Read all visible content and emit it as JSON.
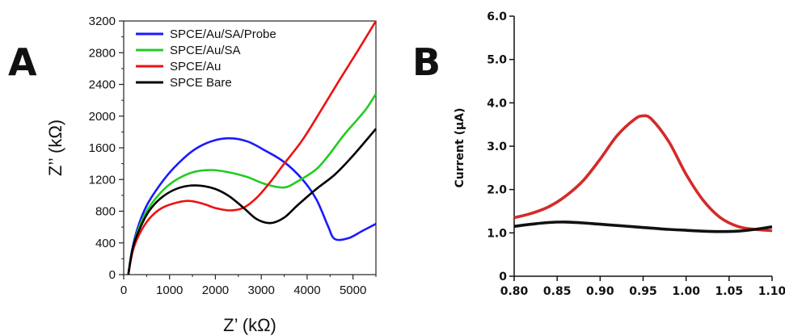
{
  "panels": {
    "a": "A",
    "b": "B"
  },
  "chart_data": [
    {
      "type": "line",
      "xlabel": "Z’ (kΩ)",
      "ylabel": "Z’’ (kΩ)",
      "xlim": [
        0,
        5500
      ],
      "ylim": [
        0,
        3200
      ],
      "xticks": [
        "0",
        "1000",
        "2000",
        "3000",
        "4000",
        "5000"
      ],
      "yticks": [
        "0",
        "400",
        "800",
        "1200",
        "1600",
        "2000",
        "2400",
        "2800",
        "3200"
      ],
      "legend_position": "top-left",
      "series": [
        {
          "name": "SPCE/Au/SA/Probe",
          "color": "#1a1aff",
          "x": [
            100,
            180,
            300,
            500,
            800,
            1100,
            1500,
            1900,
            2300,
            2700,
            3100,
            3500,
            3900,
            4200,
            4450,
            4600,
            4900,
            5200,
            5500
          ],
          "y": [
            0,
            300,
            580,
            870,
            1140,
            1350,
            1560,
            1680,
            1720,
            1680,
            1560,
            1420,
            1200,
            950,
            620,
            450,
            460,
            550,
            640
          ]
        },
        {
          "name": "SPCE/Au/SA",
          "color": "#22cc22",
          "x": [
            100,
            180,
            300,
            500,
            800,
            1100,
            1500,
            1900,
            2300,
            2700,
            3100,
            3500,
            3800,
            4200,
            4500,
            4800,
            5100,
            5300,
            5500
          ],
          "y": [
            0,
            280,
            540,
            800,
            1030,
            1180,
            1290,
            1320,
            1290,
            1230,
            1140,
            1100,
            1180,
            1330,
            1530,
            1760,
            1960,
            2100,
            2280
          ]
        },
        {
          "name": "SPCE/Au",
          "color": "#ee1111",
          "x": [
            100,
            200,
            350,
            550,
            800,
            1100,
            1400,
            1700,
            2000,
            2300,
            2600,
            2900,
            3200,
            3500,
            3900,
            4300,
            4700,
            5100,
            5500
          ],
          "y": [
            0,
            300,
            520,
            700,
            830,
            900,
            930,
            900,
            840,
            810,
            840,
            970,
            1170,
            1400,
            1700,
            2070,
            2450,
            2820,
            3200
          ]
        },
        {
          "name": "SPCE Bare",
          "color": "#000000",
          "x": [
            100,
            200,
            350,
            550,
            800,
            1100,
            1400,
            1700,
            2000,
            2300,
            2600,
            2900,
            3200,
            3500,
            3800,
            4200,
            4600,
            5000,
            5500
          ],
          "y": [
            0,
            340,
            580,
            800,
            960,
            1070,
            1120,
            1120,
            1080,
            990,
            850,
            700,
            650,
            720,
            880,
            1080,
            1260,
            1500,
            1840
          ]
        }
      ]
    },
    {
      "type": "line",
      "xlabel": "",
      "ylabel": "Current (μA)",
      "xlim": [
        0.8,
        1.1
      ],
      "ylim": [
        0,
        6.0
      ],
      "xticks": [
        "0.80",
        "0.85",
        "0.90",
        "0.95",
        "1.00",
        "1.05",
        "1.10"
      ],
      "yticks": [
        "0",
        "1.0",
        "2.0",
        "3.0",
        "4.0",
        "5.0",
        "6.0"
      ],
      "series": [
        {
          "color": "#d42a2a",
          "x": [
            0.8,
            0.82,
            0.84,
            0.86,
            0.88,
            0.9,
            0.92,
            0.94,
            0.95,
            0.96,
            0.98,
            1.0,
            1.02,
            1.04,
            1.06,
            1.08,
            1.1
          ],
          "y": [
            1.35,
            1.45,
            1.6,
            1.85,
            2.2,
            2.7,
            3.25,
            3.62,
            3.7,
            3.62,
            3.1,
            2.35,
            1.75,
            1.35,
            1.15,
            1.08,
            1.05
          ]
        },
        {
          "color": "#111111",
          "x": [
            0.8,
            0.82,
            0.84,
            0.86,
            0.88,
            0.9,
            0.92,
            0.94,
            0.96,
            0.98,
            1.0,
            1.02,
            1.04,
            1.06,
            1.08,
            1.1
          ],
          "y": [
            1.15,
            1.2,
            1.24,
            1.25,
            1.23,
            1.2,
            1.17,
            1.14,
            1.11,
            1.08,
            1.06,
            1.04,
            1.03,
            1.04,
            1.08,
            1.14
          ]
        }
      ]
    }
  ]
}
